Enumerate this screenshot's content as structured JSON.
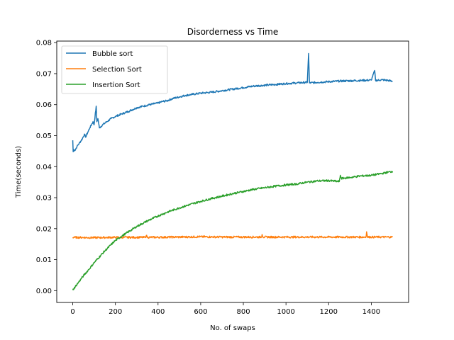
{
  "chart_data": {
    "type": "line",
    "title": "Disorderness vs Time",
    "xlabel": "No. of swaps",
    "ylabel": "Time(seconds)",
    "xlim": [
      -75,
      1575
    ],
    "ylim": [
      -0.0038,
      0.0805
    ],
    "xticks": [
      0,
      200,
      400,
      600,
      800,
      1000,
      1200,
      1400
    ],
    "yticks": [
      0.0,
      0.01,
      0.02,
      0.03,
      0.04,
      0.05,
      0.06,
      0.07,
      0.08
    ],
    "ytick_labels": [
      "0.00",
      "0.01",
      "0.02",
      "0.03",
      "0.04",
      "0.05",
      "0.06",
      "0.07",
      "0.08"
    ],
    "grid": false,
    "legend_position": "top-left",
    "series": [
      {
        "name": "Bubble sort",
        "color": "#1f77b4",
        "x": [
          0,
          2,
          5,
          10,
          20,
          30,
          45,
          55,
          60,
          70,
          80,
          95,
          100,
          110,
          113,
          118,
          125,
          140,
          160,
          180,
          200,
          230,
          260,
          300,
          330,
          360,
          400,
          420,
          440,
          470,
          500,
          530,
          560,
          600,
          650,
          700,
          750,
          800,
          850,
          890,
          950,
          1000,
          1050,
          1100,
          1106,
          1110,
          1150,
          1200,
          1250,
          1300,
          1350,
          1400,
          1416,
          1420,
          1450,
          1480,
          1500
        ],
        "y": [
          0.0485,
          0.0448,
          0.0455,
          0.0452,
          0.0465,
          0.0475,
          0.049,
          0.0505,
          0.0495,
          0.051,
          0.0525,
          0.0545,
          0.0535,
          0.0595,
          0.0545,
          0.0555,
          0.0525,
          0.0535,
          0.0545,
          0.0555,
          0.0562,
          0.057,
          0.0578,
          0.059,
          0.0595,
          0.06,
          0.0605,
          0.061,
          0.0612,
          0.062,
          0.0625,
          0.063,
          0.0633,
          0.0637,
          0.064,
          0.0645,
          0.065,
          0.0655,
          0.066,
          0.0662,
          0.0665,
          0.0668,
          0.067,
          0.0672,
          0.0765,
          0.067,
          0.0672,
          0.0674,
          0.0676,
          0.0677,
          0.0678,
          0.0679,
          0.071,
          0.0678,
          0.068,
          0.0678,
          0.0675
        ]
      },
      {
        "name": "Selection Sort",
        "color": "#ff7f0e",
        "x": [
          0,
          100,
          200,
          300,
          340,
          345,
          350,
          500,
          600,
          700,
          800,
          885,
          888,
          892,
          1000,
          1100,
          1200,
          1300,
          1375,
          1378,
          1382,
          1450,
          1500
        ],
        "y": [
          0.0172,
          0.0171,
          0.0172,
          0.0172,
          0.0172,
          0.0178,
          0.0172,
          0.0173,
          0.0174,
          0.0173,
          0.0173,
          0.0173,
          0.0181,
          0.0173,
          0.0173,
          0.0173,
          0.0173,
          0.0173,
          0.0173,
          0.019,
          0.0173,
          0.0173,
          0.0173
        ]
      },
      {
        "name": "Insertion Sort",
        "color": "#2ca02c",
        "x": [
          0,
          25,
          50,
          75,
          100,
          150,
          200,
          250,
          300,
          350,
          400,
          450,
          500,
          550,
          600,
          650,
          700,
          750,
          800,
          850,
          900,
          950,
          1000,
          1050,
          1100,
          1150,
          1200,
          1250,
          1255,
          1260,
          1300,
          1350,
          1400,
          1450,
          1500
        ],
        "y": [
          0.0002,
          0.0025,
          0.0048,
          0.0068,
          0.009,
          0.0128,
          0.0162,
          0.0185,
          0.0207,
          0.0225,
          0.0241,
          0.0255,
          0.0267,
          0.0278,
          0.0288,
          0.0297,
          0.0305,
          0.0313,
          0.032,
          0.0327,
          0.0332,
          0.0337,
          0.0341,
          0.0344,
          0.035,
          0.0354,
          0.0355,
          0.0352,
          0.0372,
          0.0362,
          0.0365,
          0.037,
          0.0372,
          0.0378,
          0.0385
        ]
      }
    ]
  }
}
